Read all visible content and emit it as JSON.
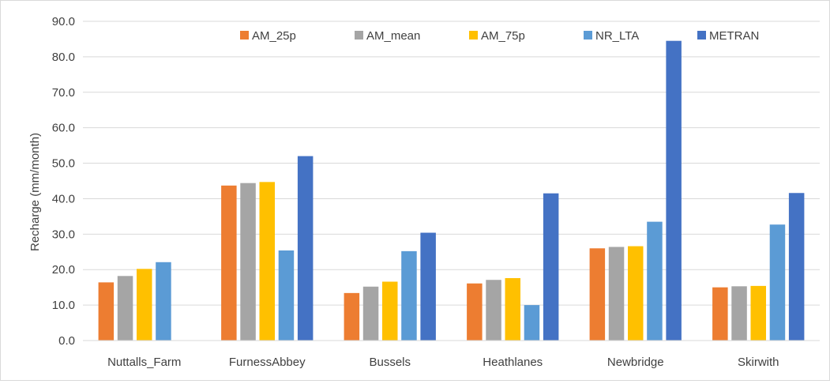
{
  "chart_data": {
    "type": "bar",
    "ylabel": "Recharge (mm/month)",
    "xlabel": "",
    "ylim": [
      0,
      90
    ],
    "ytick_step": 10,
    "ytick_format_decimals": 1,
    "grid": true,
    "legend_position": "top",
    "categories": [
      "Nuttalls_Farm",
      "FurnessAbbey",
      "Bussels",
      "Heathlanes",
      "Newbridge",
      "Skirwith"
    ],
    "series": [
      {
        "name": "AM_25p",
        "color": "#ED7D31",
        "values": [
          16.4,
          43.7,
          13.4,
          16.1,
          26.0,
          15.0
        ]
      },
      {
        "name": "AM_mean",
        "color": "#A5A5A5",
        "values": [
          18.2,
          44.4,
          15.2,
          17.1,
          26.4,
          15.3
        ]
      },
      {
        "name": "AM_75p",
        "color": "#FFC000",
        "values": [
          20.2,
          44.7,
          16.6,
          17.6,
          26.6,
          15.4
        ]
      },
      {
        "name": "NR_LTA",
        "color": "#5B9BD5",
        "values": [
          22.1,
          25.4,
          25.2,
          10.0,
          33.5,
          32.7
        ]
      },
      {
        "name": "METRAN",
        "color": "#4472C4",
        "values": [
          null,
          52.0,
          30.4,
          41.5,
          84.5,
          41.6
        ]
      }
    ]
  }
}
